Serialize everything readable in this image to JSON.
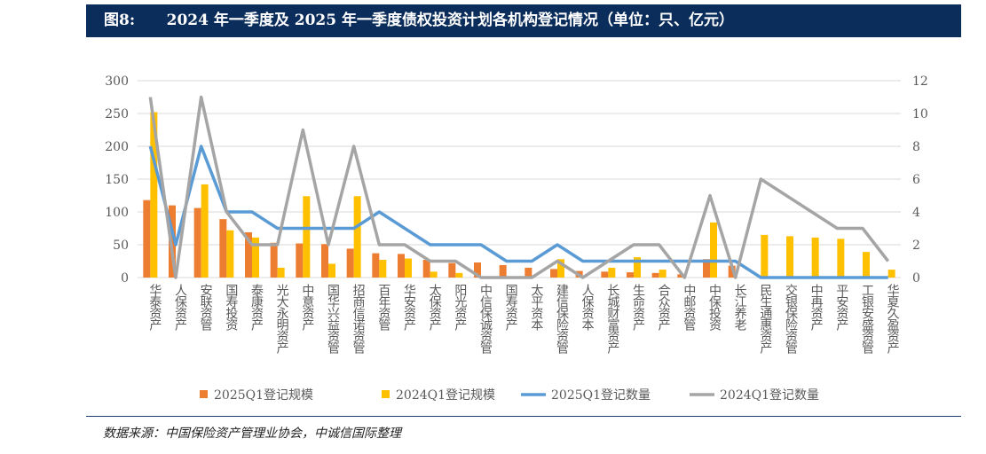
{
  "title": "图8:      2024 年一季度及 2025 年一季度债权投资计划各机构登记情况（单位：只、亿元）",
  "source": "数据来源：中国保险资产管理业协会，中诚信国际整理",
  "chart_data": {
    "type": "bar+line",
    "categories": [
      "华泰资产",
      "人保资产",
      "安联资管",
      "国寿投资",
      "泰康资产",
      "光大永明资产",
      "中意资产",
      "国华兴益资管",
      "招商信诺资管",
      "百年资管",
      "华安资产",
      "太保资产",
      "阳光资产",
      "中信保诚资管",
      "国寿资产",
      "太平资本",
      "建信保险资管",
      "人保资本",
      "长城财富资产",
      "生命资产",
      "合众资产",
      "中邮资管",
      "中保投资",
      "长江养老",
      "民生通惠资产",
      "交银保险资管",
      "中再资产",
      "平安资产",
      "工银安盛资管",
      "华夏久盈资产"
    ],
    "left_axis": {
      "ylim": [
        0,
        300
      ],
      "ticks": [
        0,
        50,
        100,
        150,
        200,
        250,
        300
      ]
    },
    "right_axis": {
      "ylim": [
        0,
        12
      ],
      "ticks": [
        0,
        2,
        4,
        6,
        8,
        10,
        12
      ]
    },
    "grid": true,
    "legend": "bottom",
    "series": [
      {
        "name": "2025Q1登记规模",
        "type": "bar",
        "axis": "left",
        "color": "#ed7d31",
        "values": [
          118,
          110,
          106,
          89,
          69,
          53,
          52,
          51,
          44,
          37,
          36,
          27,
          22,
          23,
          19,
          15,
          13,
          10,
          9,
          8,
          7,
          5,
          28,
          18,
          0,
          0,
          0,
          0,
          0,
          0
        ]
      },
      {
        "name": "2024Q1登记规模",
        "type": "bar",
        "axis": "left",
        "color": "#ffc000",
        "values": [
          252,
          0,
          142,
          72,
          61,
          15,
          124,
          21,
          124,
          27,
          29,
          9,
          7,
          0,
          0,
          0,
          28,
          0,
          15,
          31,
          12,
          0,
          84,
          0,
          65,
          63,
          61,
          59,
          39,
          12
        ]
      },
      {
        "name": "2025Q1登记数量",
        "type": "line",
        "axis": "right",
        "color": "#5b9bd5",
        "values": [
          8,
          2,
          8,
          4,
          4,
          3,
          3,
          3,
          3,
          4,
          3,
          2,
          2,
          2,
          1,
          1,
          2,
          1,
          1,
          1,
          1,
          1,
          1,
          1,
          0,
          0,
          0,
          0,
          0,
          0
        ]
      },
      {
        "name": "2024Q1登记数量",
        "type": "line",
        "axis": "right",
        "color": "#a5a5a5",
        "values": [
          11,
          0,
          11,
          4,
          2,
          2,
          9,
          2,
          8,
          2,
          2,
          1,
          1,
          0,
          0,
          0,
          1,
          0,
          1,
          2,
          2,
          0,
          5,
          0,
          6,
          5,
          4,
          3,
          3,
          1
        ]
      }
    ]
  }
}
